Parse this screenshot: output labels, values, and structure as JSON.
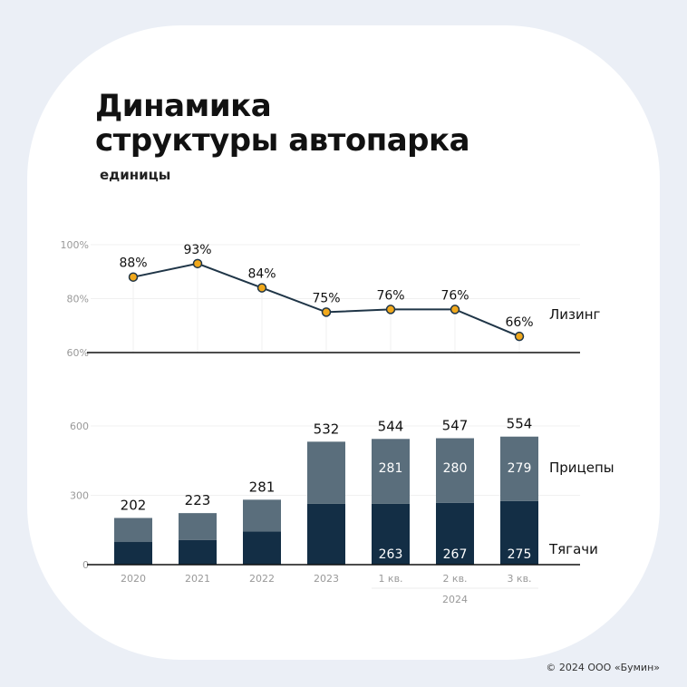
{
  "header": {
    "title_line1": "Динамика",
    "title_line2": "структуры автопарка",
    "subtitle": "единицы"
  },
  "footer": {
    "copyright": "© 2024 ООО «Бумин»"
  },
  "colors": {
    "background": "#ebeff6",
    "line": "#1f3547",
    "marker": "#f0a81c",
    "tractors": "#132e45",
    "trailers": "#5a6e7c"
  },
  "chart_data": [
    {
      "type": "line",
      "categories": [
        "2020",
        "2021",
        "2022",
        "2023",
        "1 кв.",
        "2 кв.",
        "3 кв."
      ],
      "series": [
        {
          "name": "Лизинг",
          "values": [
            88,
            93,
            84,
            75,
            76,
            76,
            66
          ]
        }
      ],
      "data_labels": [
        "88%",
        "93%",
        "84%",
        "75%",
        "76%",
        "76%",
        "66%"
      ],
      "ylim": [
        60,
        100
      ],
      "yticks": [
        "60%",
        "80%",
        "100%"
      ],
      "grid": true,
      "legend_placement": "right"
    },
    {
      "type": "bar",
      "stacked": true,
      "categories": [
        "2020",
        "2021",
        "2022",
        "2023",
        "1 кв.",
        "2 кв.",
        "3 кв."
      ],
      "category_group": {
        "label": "2024",
        "categories": [
          "1 кв.",
          "2 кв.",
          "3 кв."
        ]
      },
      "series": [
        {
          "name": "Тягачи",
          "values": [
            98,
            107,
            143,
            263,
            263,
            267,
            275
          ],
          "labels": [
            "",
            "",
            "",
            "",
            "263",
            "267",
            "275"
          ]
        },
        {
          "name": "Прицепы",
          "values": [
            104,
            116,
            138,
            269,
            281,
            280,
            279
          ],
          "labels": [
            "",
            "",
            "",
            "",
            "281",
            "280",
            "279"
          ]
        }
      ],
      "totals": [
        "202",
        "223",
        "281",
        "532",
        "544",
        "547",
        "554"
      ],
      "total_values": [
        202,
        223,
        281,
        532,
        544,
        547,
        554
      ],
      "ylim": [
        0,
        600
      ],
      "yticks": [
        "0",
        "300",
        "600"
      ],
      "grid": true,
      "legend_placement": "right"
    }
  ]
}
